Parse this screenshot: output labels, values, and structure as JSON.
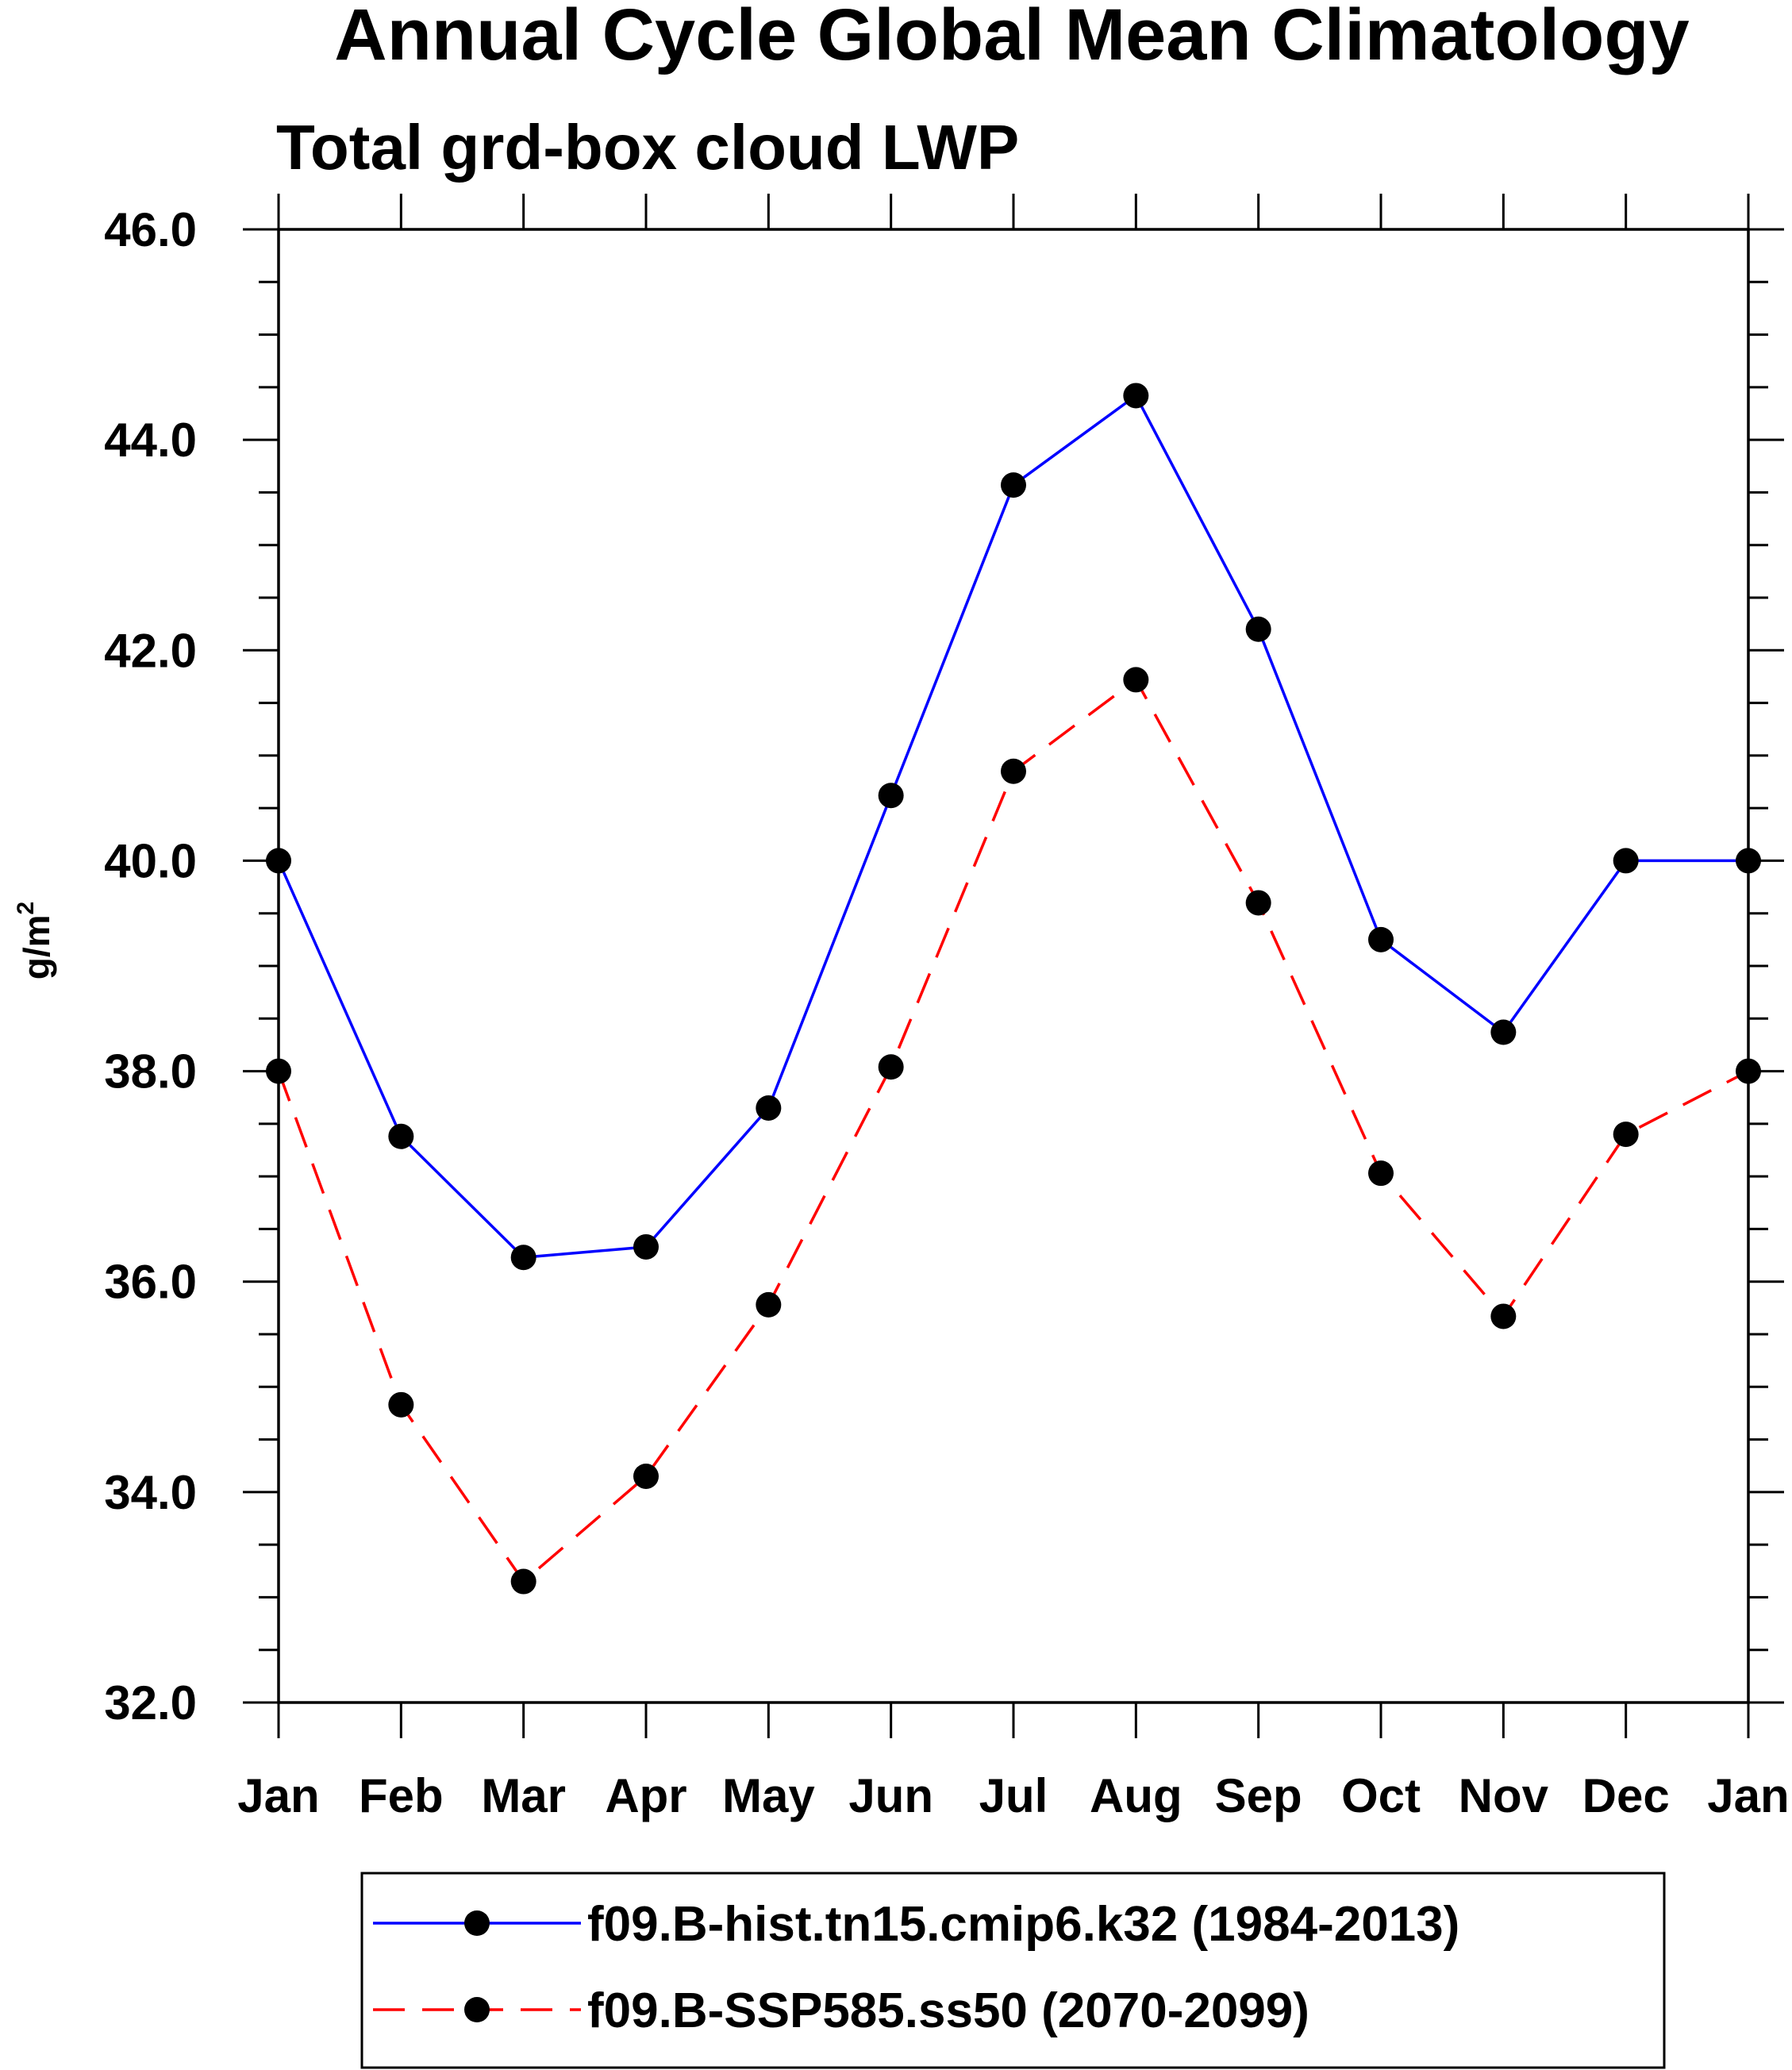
{
  "chart_data": {
    "type": "line",
    "title": "Annual Cycle Global Mean Climatology",
    "subtitle": "Total grd-box cloud LWP",
    "xlabel": "",
    "ylabel": "g/m",
    "ylabel_superscript": "2",
    "ylim": [
      32.0,
      46.0
    ],
    "y_major_ticks": [
      "32.0",
      "34.0",
      "36.0",
      "38.0",
      "40.0",
      "42.0",
      "44.0",
      "46.0"
    ],
    "y_minor_step": 0.5,
    "grid": false,
    "legend_position": "bottom-center",
    "categories": [
      "Jan",
      "Feb",
      "Mar",
      "Apr",
      "May",
      "Jun",
      "Jul",
      "Aug",
      "Sep",
      "Oct",
      "Nov",
      "Dec",
      "Jan"
    ],
    "series": [
      {
        "name": "f09.B-hist.tn15.cmip6.k32 (1984-2013)",
        "color": "#0000ff",
        "dash": "solid",
        "values": [
          40.0,
          37.38,
          36.23,
          36.33,
          37.65,
          40.62,
          43.57,
          44.42,
          42.2,
          39.25,
          38.37,
          40.0,
          40.0
        ]
      },
      {
        "name": "f09.B-SSP585.ss50 (2070-2099)",
        "color": "#ff0000",
        "dash": "dashed",
        "values": [
          38.0,
          34.83,
          33.15,
          34.15,
          35.78,
          38.04,
          40.85,
          41.72,
          39.6,
          37.03,
          35.67,
          37.4,
          38.0
        ]
      }
    ]
  }
}
